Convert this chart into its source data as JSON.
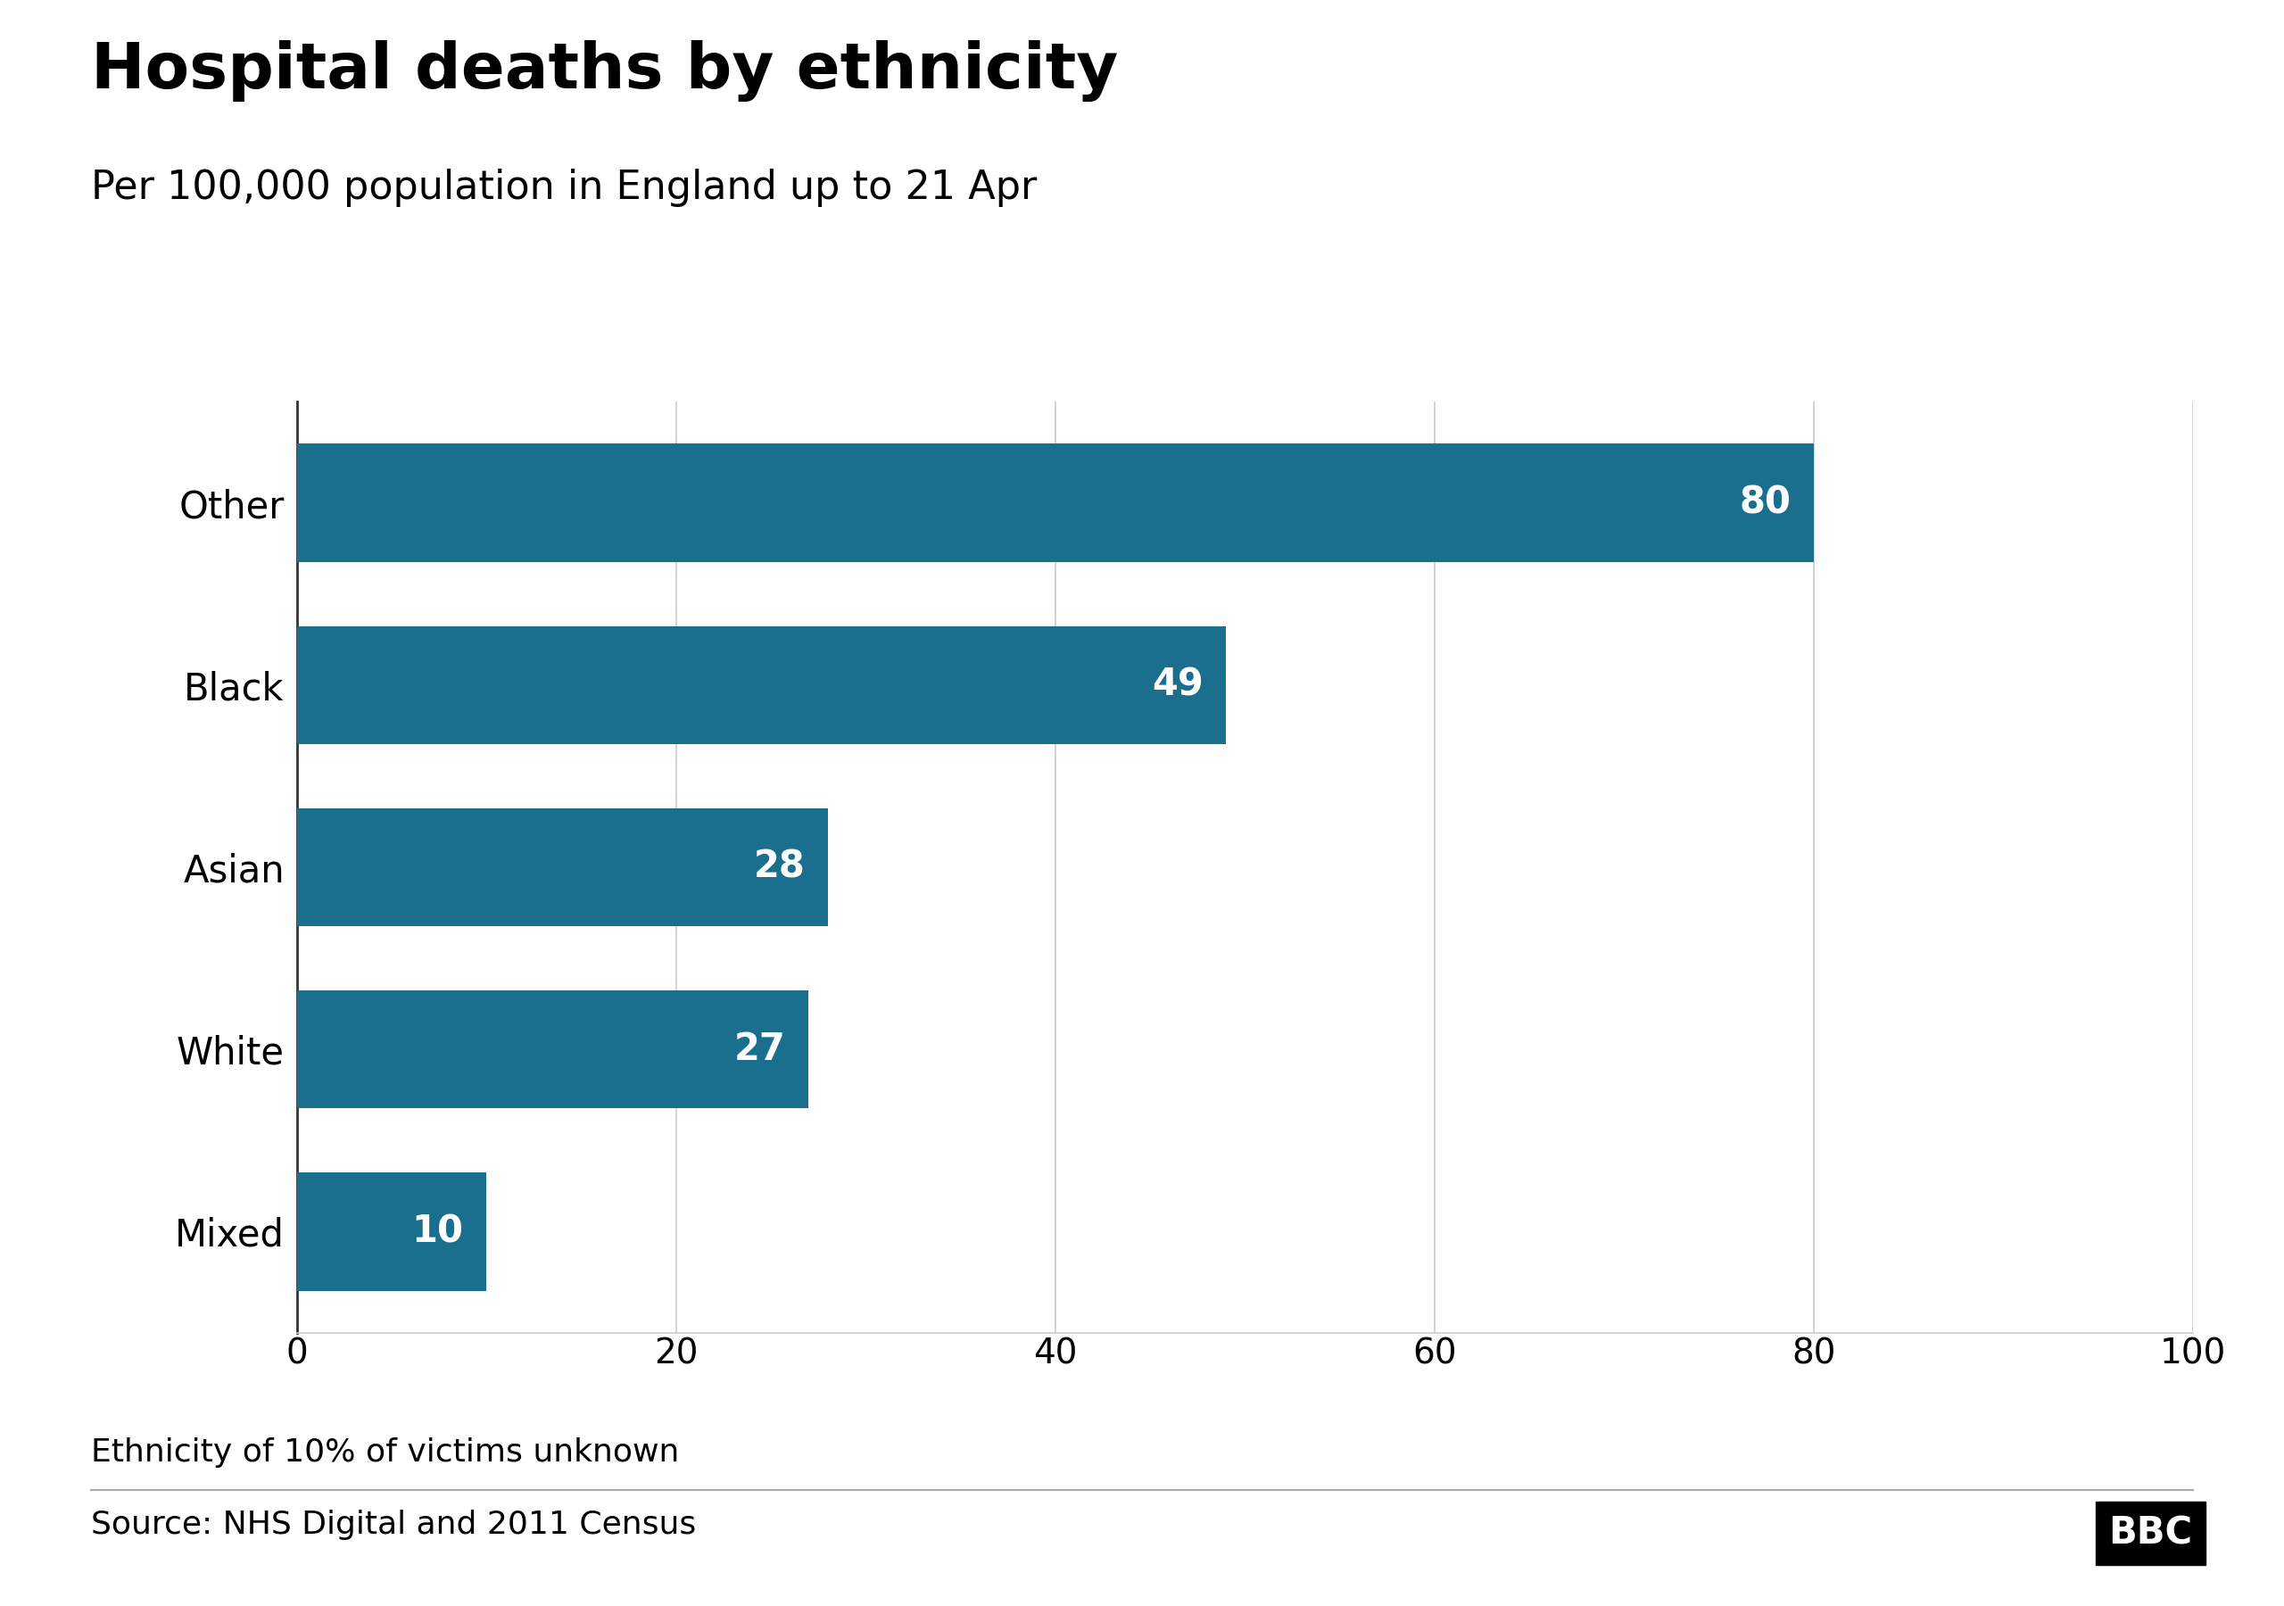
{
  "title": "Hospital deaths by ethnicity",
  "subtitle": "Per 100,000 population in England up to 21 Apr",
  "categories": [
    "Mixed",
    "White",
    "Asian",
    "Black",
    "Other"
  ],
  "values": [
    10,
    27,
    28,
    49,
    80
  ],
  "bar_color": "#1a6e8e",
  "xlim": [
    0,
    100
  ],
  "xticks": [
    0,
    20,
    40,
    60,
    80,
    100
  ],
  "footnote": "Ethnicity of 10% of victims unknown",
  "source": "Source: NHS Digital and 2011 Census",
  "bbc_logo": "BBC",
  "title_fontsize": 52,
  "subtitle_fontsize": 32,
  "label_fontsize": 30,
  "value_fontsize": 30,
  "tick_fontsize": 28,
  "footnote_fontsize": 26,
  "source_fontsize": 26,
  "background_color": "#ffffff",
  "text_color": "#000000",
  "bar_label_color": "#ffffff",
  "grid_color": "#cccccc",
  "left_spine_color": "#333333"
}
